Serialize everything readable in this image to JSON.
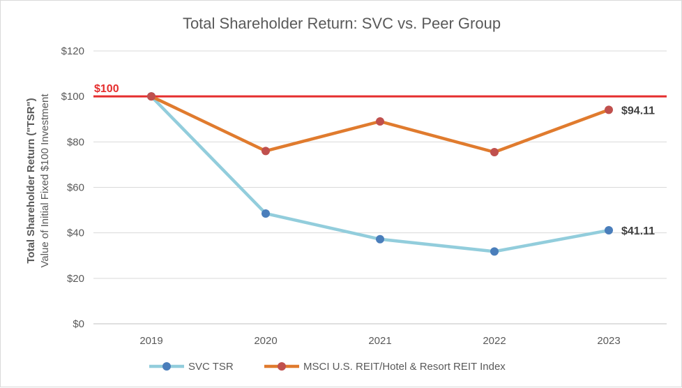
{
  "chart_data": {
    "type": "line",
    "title": "Total Shareholder Return: SVC vs. Peer Group",
    "ylabel": "Total Shareholder Return (\"TSR\")",
    "ylabel_sub": "Value of Initial Fixed $100 Investment",
    "xlabel": "",
    "categories": [
      "2019",
      "2020",
      "2021",
      "2022",
      "2023"
    ],
    "ylim": [
      0,
      120
    ],
    "yticks": [
      "$0",
      "$20",
      "$40",
      "$60",
      "$80",
      "$100",
      "$120"
    ],
    "grid": true,
    "legend_position": "bottom",
    "reference_line": {
      "value": 100,
      "label": "$100",
      "color": "#e52d2d"
    },
    "series": [
      {
        "name": "SVC TSR",
        "values": [
          100,
          48.5,
          37.2,
          31.8,
          41.11
        ],
        "line_color": "#92cddc",
        "marker_color": "#4a7ebb",
        "end_label": "$41.11"
      },
      {
        "name": "MSCI U.S. REIT/Hotel & Resort REIT Index",
        "values": [
          100,
          76,
          89,
          75.5,
          94.11
        ],
        "line_color": "#e07b2e",
        "marker_color": "#c0504d",
        "end_label": "$94.11"
      }
    ]
  }
}
